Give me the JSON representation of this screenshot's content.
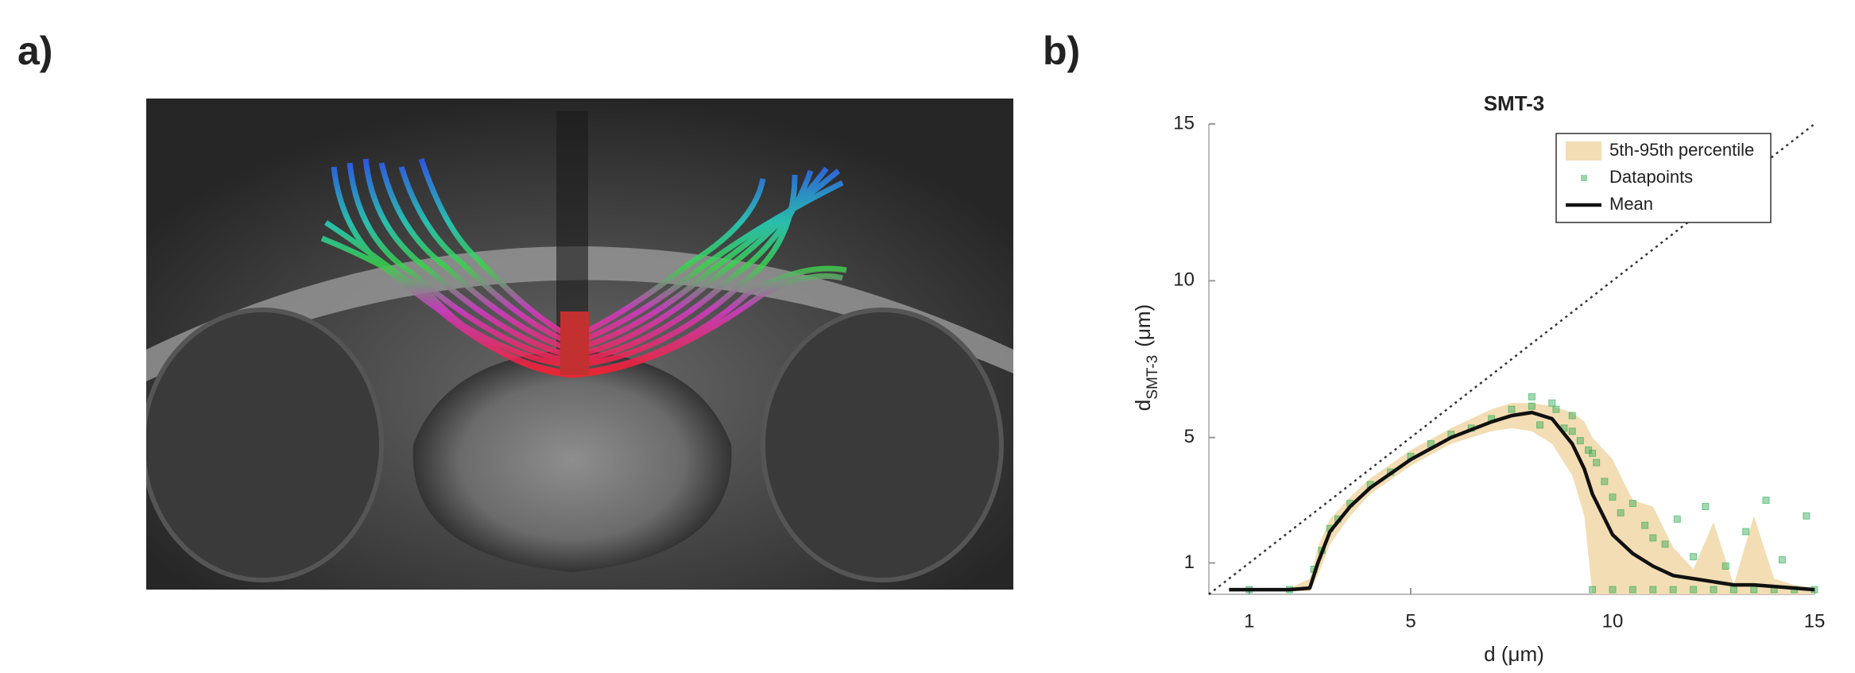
{
  "panel_labels": [
    "a)",
    "b)"
  ],
  "chart_data": {
    "type": "line",
    "title": "SMT-3",
    "xlabel": "d (μm)",
    "ylabel": {
      "main": "d",
      "sub": "SMT-3",
      "unit": "(μm)"
    },
    "xlim": [
      0,
      15
    ],
    "ylim": [
      0,
      15
    ],
    "xticks": [
      1,
      5,
      10,
      15
    ],
    "yticks": [
      1,
      5,
      10,
      15
    ],
    "identity_line": true,
    "legend": "upper right",
    "x": [
      0.5,
      1,
      1.5,
      2,
      2.5,
      2.7,
      3,
      3.5,
      4,
      5,
      6,
      7,
      7.5,
      8,
      8.5,
      9,
      9.3,
      9.5,
      10,
      10.5,
      11,
      11.5,
      12,
      12.5,
      13,
      13.5,
      14,
      14.5,
      15
    ],
    "series": [
      {
        "name": "5th-95th percentile",
        "type": "band",
        "color": "#f3ddb4",
        "lower": [
          0.1,
          0.1,
          0.1,
          0.1,
          0.1,
          0.6,
          1.6,
          2.5,
          3.2,
          4.1,
          4.8,
          5.2,
          5.3,
          5.2,
          4.8,
          3.8,
          2.5,
          0,
          0,
          0,
          0,
          0,
          0,
          0,
          0,
          0,
          0,
          0,
          0
        ],
        "upper": [
          0.2,
          0.2,
          0.2,
          0.2,
          0.5,
          1.5,
          2.4,
          3.1,
          3.7,
          4.6,
          5.3,
          5.9,
          6.1,
          6.1,
          6.0,
          5.8,
          5.5,
          5.0,
          4.3,
          3.0,
          2.8,
          1.5,
          0.8,
          2.3,
          0.3,
          2.5,
          0.5,
          0.3,
          0.2
        ]
      },
      {
        "name": "Datapoints",
        "type": "scatter",
        "color": "#2fae55",
        "x": [
          1,
          2,
          2.6,
          2.8,
          3,
          3.2,
          3.5,
          4,
          4.5,
          5,
          5.5,
          6,
          6.5,
          7,
          7.5,
          8,
          8.2,
          8.5,
          8.8,
          9,
          9.2,
          9.4,
          9.6,
          9.8,
          10,
          10.2,
          10.5,
          10.8,
          11,
          11.3,
          11.6,
          12,
          12.3,
          12.8,
          13.3,
          13.8,
          14.2,
          14.8,
          9.5,
          10,
          10.5,
          11,
          11.5,
          12,
          12.5,
          13,
          13.5,
          14,
          14.5,
          15,
          8,
          8.6,
          9,
          9.5
        ],
        "values": [
          0.15,
          0.15,
          0.8,
          1.4,
          2.1,
          2.4,
          2.9,
          3.5,
          3.9,
          4.4,
          4.8,
          5.1,
          5.3,
          5.6,
          5.9,
          6.0,
          5.4,
          6.1,
          5.3,
          5.7,
          4.9,
          4.6,
          4.2,
          3.6,
          3.1,
          2.6,
          2.9,
          2.2,
          1.8,
          1.6,
          2.4,
          1.2,
          2.8,
          0.9,
          2.0,
          3.0,
          1.1,
          2.5,
          0.15,
          0.15,
          0.15,
          0.15,
          0.15,
          0.15,
          0.15,
          0.15,
          0.15,
          0.15,
          0.15,
          0.15,
          6.3,
          5.9,
          5.2,
          4.5
        ]
      },
      {
        "name": "Mean",
        "type": "line",
        "color": "#111111",
        "values": [
          0.15,
          0.15,
          0.15,
          0.15,
          0.2,
          1.0,
          2.0,
          2.8,
          3.4,
          4.3,
          5.0,
          5.5,
          5.7,
          5.8,
          5.6,
          4.8,
          4.0,
          3.2,
          1.9,
          1.3,
          0.9,
          0.6,
          0.5,
          0.4,
          0.3,
          0.3,
          0.25,
          0.2,
          0.15
        ]
      }
    ]
  }
}
